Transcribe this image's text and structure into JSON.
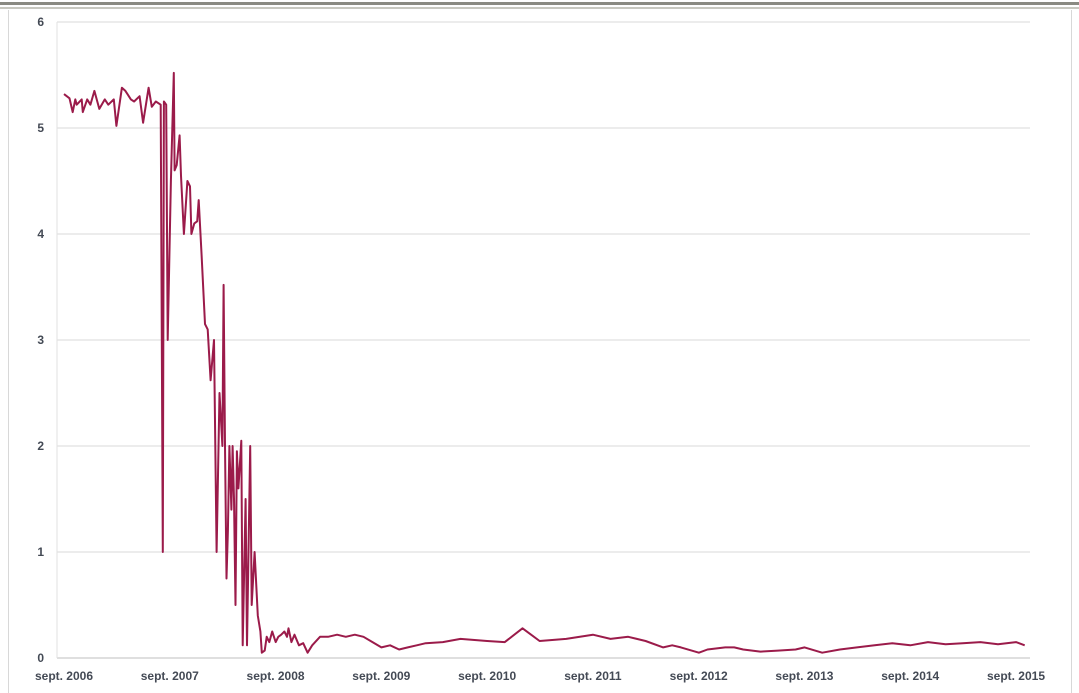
{
  "chart_data": {
    "type": "line",
    "title": "",
    "xlabel": "",
    "ylabel": "",
    "ylim": [
      0,
      6
    ],
    "y_ticks": [
      "0",
      "1",
      "2",
      "3",
      "4",
      "5",
      "6"
    ],
    "x_tick_labels": [
      "sept. 2006",
      "sept. 2007",
      "sept. 2008",
      "sept. 2009",
      "sept. 2010",
      "sept. 2011",
      "sept. 2012",
      "sept. 2013",
      "sept. 2014",
      "sept. 2015"
    ],
    "grid": "horizontal",
    "line_color": "#9b1b4a",
    "series": [
      {
        "x": [
          "2006-09-01",
          "2006-09-20",
          "2006-10-01",
          "2006-10-10",
          "2006-10-15",
          "2006-11-01",
          "2006-11-05",
          "2006-11-20",
          "2006-12-01",
          "2006-12-15",
          "2007-01-01",
          "2007-01-20",
          "2007-02-01",
          "2007-02-20",
          "2007-03-01",
          "2007-03-20",
          "2007-04-01",
          "2007-04-20",
          "2007-05-01",
          "2007-05-20",
          "2007-06-01",
          "2007-06-20",
          "2007-07-01",
          "2007-07-15",
          "2007-08-01",
          "2007-08-08",
          "2007-08-12",
          "2007-08-20",
          "2007-08-25",
          "2007-09-05",
          "2007-09-15",
          "2007-09-18",
          "2007-09-25",
          "2007-10-05",
          "2007-10-10",
          "2007-10-20",
          "2007-11-01",
          "2007-11-10",
          "2007-11-15",
          "2007-11-25",
          "2007-12-05",
          "2007-12-10",
          "2007-12-20",
          "2008-01-01",
          "2008-01-10",
          "2008-01-20",
          "2008-02-01",
          "2008-02-10",
          "2008-02-20",
          "2008-03-01",
          "2008-03-05",
          "2008-03-10",
          "2008-03-15",
          "2008-03-20",
          "2008-03-25",
          "2008-04-01",
          "2008-04-05",
          "2008-04-10",
          "2008-04-15",
          "2008-04-20",
          "2008-04-25",
          "2008-05-05",
          "2008-05-10",
          "2008-05-20",
          "2008-05-25",
          "2008-06-05",
          "2008-06-10",
          "2008-06-20",
          "2008-07-01",
          "2008-07-10",
          "2008-07-15",
          "2008-07-25",
          "2008-08-01",
          "2008-08-10",
          "2008-08-20",
          "2008-09-01",
          "2008-09-10",
          "2008-09-20",
          "2008-10-01",
          "2008-10-10",
          "2008-10-15",
          "2008-10-25",
          "2008-11-05",
          "2008-11-20",
          "2008-12-05",
          "2008-12-20",
          "2009-01-05",
          "2009-02-01",
          "2009-03-01",
          "2009-04-01",
          "2009-05-01",
          "2009-06-01",
          "2009-07-01",
          "2009-08-01",
          "2009-09-01",
          "2009-10-01",
          "2009-11-01",
          "2009-12-01",
          "2010-01-01",
          "2010-02-01",
          "2010-04-01",
          "2010-06-01",
          "2010-09-01",
          "2010-11-01",
          "2011-01-01",
          "2011-03-01",
          "2011-06-01",
          "2011-09-01",
          "2011-11-01",
          "2012-01-01",
          "2012-03-01",
          "2012-05-01",
          "2012-06-01",
          "2012-07-01",
          "2012-09-01",
          "2012-10-01",
          "2012-12-01",
          "2013-01-01",
          "2013-02-01",
          "2013-04-01",
          "2013-06-01",
          "2013-08-01",
          "2013-09-01",
          "2013-11-01",
          "2014-01-01",
          "2014-03-01",
          "2014-05-01",
          "2014-07-01",
          "2014-09-01",
          "2014-11-01",
          "2015-01-01",
          "2015-03-01",
          "2015-05-01",
          "2015-07-01",
          "2015-09-01",
          "2015-10-01"
        ],
        "y": [
          5.32,
          5.28,
          5.15,
          5.27,
          5.22,
          5.27,
          5.15,
          5.27,
          5.22,
          5.35,
          5.18,
          5.27,
          5.22,
          5.27,
          5.02,
          5.38,
          5.35,
          5.27,
          5.25,
          5.3,
          5.05,
          5.38,
          5.2,
          5.25,
          5.22,
          1.0,
          5.25,
          5.22,
          3.0,
          4.5,
          5.52,
          4.6,
          4.65,
          4.93,
          4.55,
          4.0,
          4.5,
          4.45,
          4.0,
          4.1,
          4.12,
          4.32,
          3.8,
          3.15,
          3.1,
          2.62,
          3.0,
          1.0,
          2.5,
          2.0,
          3.52,
          2.0,
          0.75,
          1.2,
          2.0,
          1.4,
          2.0,
          1.5,
          0.5,
          1.95,
          1.6,
          2.05,
          0.12,
          1.5,
          0.12,
          2.0,
          0.5,
          1.0,
          0.4,
          0.25,
          0.05,
          0.07,
          0.2,
          0.15,
          0.25,
          0.15,
          0.2,
          0.22,
          0.25,
          0.2,
          0.28,
          0.15,
          0.22,
          0.12,
          0.14,
          0.05,
          0.12,
          0.2,
          0.2,
          0.22,
          0.2,
          0.22,
          0.2,
          0.15,
          0.1,
          0.12,
          0.08,
          0.1,
          0.12,
          0.14,
          0.15,
          0.18,
          0.16,
          0.15,
          0.28,
          0.16,
          0.18,
          0.22,
          0.18,
          0.2,
          0.16,
          0.1,
          0.12,
          0.1,
          0.05,
          0.08,
          0.1,
          0.1,
          0.08,
          0.06,
          0.07,
          0.08,
          0.1,
          0.05,
          0.08,
          0.1,
          0.12,
          0.14,
          0.12,
          0.15,
          0.13,
          0.14,
          0.15,
          0.13,
          0.15,
          0.12
        ]
      }
    ]
  }
}
